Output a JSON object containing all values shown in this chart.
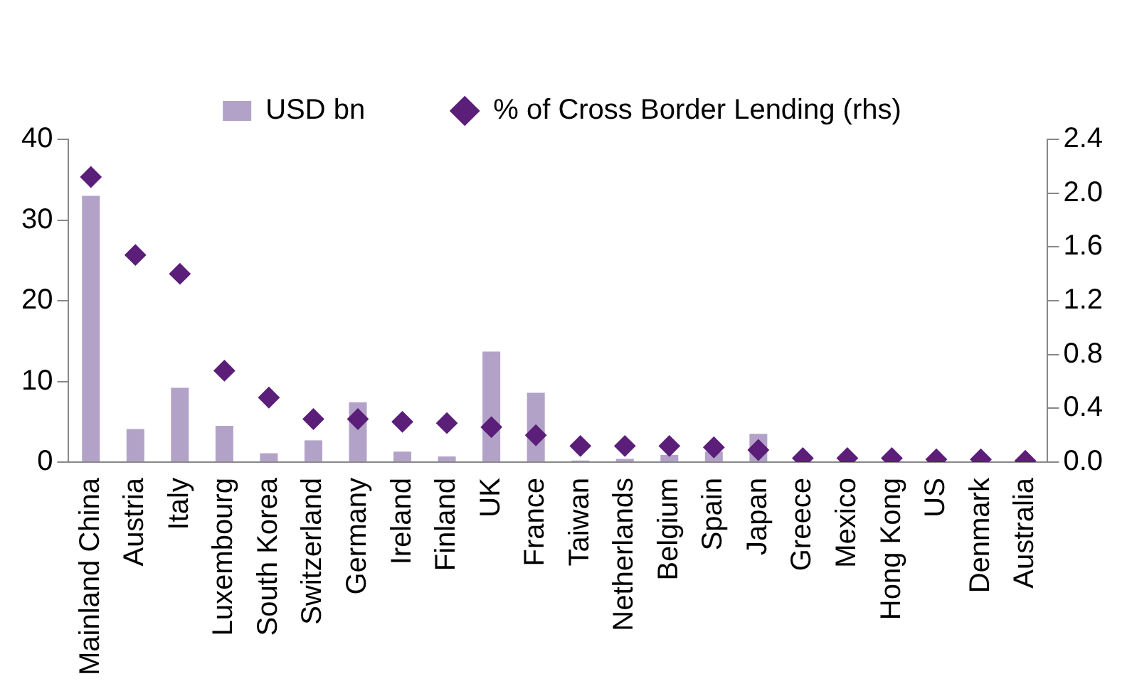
{
  "chart_data": {
    "type": "bar",
    "categories": [
      "Mainland China",
      "Austria",
      "Italy",
      "Luxembourg",
      "South Korea",
      "Switzerland",
      "Germany",
      "Ireland",
      "Finland",
      "UK",
      "France",
      "Taiwan",
      "Netherlands",
      "Belgium",
      "Spain",
      "Japan",
      "Greece",
      "Mexico",
      "Hong Kong",
      "US",
      "Denmark",
      "Australia"
    ],
    "series": [
      {
        "name": "USD bn",
        "color": "#b3a2c8",
        "values": [
          33,
          4.1,
          9.2,
          4.5,
          1.1,
          2.7,
          7.4,
          1.3,
          0.7,
          13.7,
          8.6,
          0.2,
          0.4,
          0.9,
          1.3,
          3.5,
          0,
          0,
          0,
          0,
          0,
          0
        ]
      },
      {
        "name": "% of Cross Border Lending (rhs)",
        "type": "scatter",
        "axis": "y2",
        "marker": "diamond",
        "color": "#5b1f7a",
        "values": [
          2.12,
          1.54,
          1.4,
          0.68,
          0.48,
          0.32,
          0.32,
          0.3,
          0.29,
          0.26,
          0.2,
          0.12,
          0.12,
          0.12,
          0.11,
          0.09,
          0.03,
          0.03,
          0.03,
          0.02,
          0.02,
          0.01
        ]
      }
    ],
    "ylim": [
      0,
      40
    ],
    "yticks": [
      0,
      10,
      20,
      30,
      40
    ],
    "y2lim": [
      0,
      2.4
    ],
    "y2ticks": [
      {
        "value": 0,
        "label": "0.0"
      },
      {
        "value": 0.4,
        "label": "0.4"
      },
      {
        "value": 0.8,
        "label": "0.8"
      },
      {
        "value": 1.2,
        "label": "1.2"
      },
      {
        "value": 1.6,
        "label": "1.6"
      },
      {
        "value": 2,
        "label": "2.0"
      },
      {
        "value": 2.4,
        "label": "2.4"
      }
    ],
    "grid": false,
    "legend": "top"
  }
}
